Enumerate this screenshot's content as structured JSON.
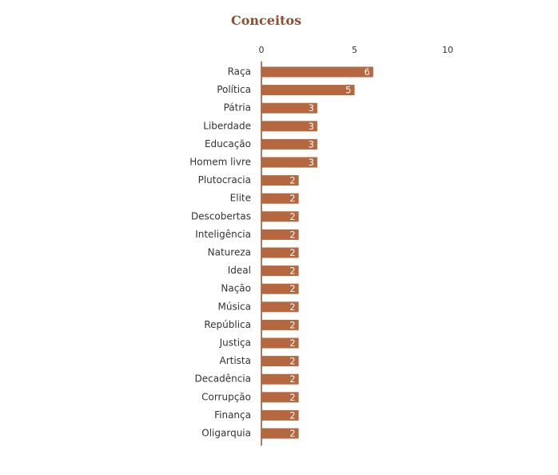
{
  "chart_data": {
    "type": "bar",
    "orientation": "horizontal",
    "title": "Conceitos",
    "xlabel": "",
    "ylabel": "",
    "xlim": [
      0,
      10
    ],
    "x_ticks": [
      0,
      5,
      10
    ],
    "x_axis_position": "top",
    "grid": false,
    "bar_color": "#b5673f",
    "categories": [
      "Raça",
      "Política",
      "Pátria",
      "Liberdade",
      "Educação",
      "Homem livre",
      "Plutocracia",
      "Elite",
      "Descobertas",
      "Inteligência",
      "Natureza",
      "Ideal",
      "Nação",
      "Música",
      "República",
      "Justiça",
      "Artista",
      "Decadência",
      "Corrupção",
      "Finança",
      "Oligarquia"
    ],
    "values": [
      6,
      5,
      3,
      3,
      3,
      3,
      2,
      2,
      2,
      2,
      2,
      2,
      2,
      2,
      2,
      2,
      2,
      2,
      2,
      2,
      2
    ]
  },
  "colors": {
    "title": "#8a5232",
    "bar": "#b5673f",
    "bar_label": "#ffffff",
    "axis": "#8a5232",
    "text": "#333333"
  }
}
